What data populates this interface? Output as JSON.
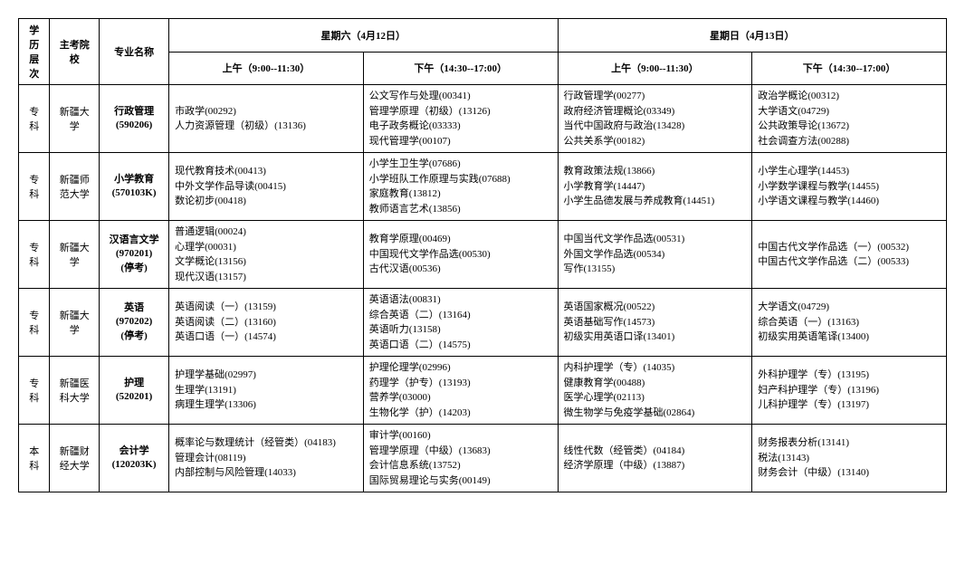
{
  "headers": {
    "level": "学历层次",
    "school": "主考院校",
    "major": "专业名称",
    "day1": "星期六（4月12日）",
    "day2": "星期日（4月13日）",
    "am": "上午（9:00--11:30）",
    "pm": "下午（14:30--17:00）"
  },
  "rows": [
    {
      "level": "专科",
      "school": "新疆大学",
      "major_name": "行政管理",
      "major_code": "(590206)",
      "major_note": "",
      "d1am": [
        "市政学(00292)",
        "人力资源管理（初级）(13136)"
      ],
      "d1pm": [
        "公文写作与处理(00341)",
        "管理学原理（初级）(13126)",
        "电子政务概论(03333)",
        "现代管理学(00107)"
      ],
      "d2am": [
        "行政管理学(00277)",
        "政府经济管理概论(03349)",
        "当代中国政府与政治(13428)",
        "公共关系学(00182)"
      ],
      "d2pm": [
        "政治学概论(00312)",
        "大学语文(04729)",
        "公共政策导论(13672)",
        "社会调查方法(00288)"
      ]
    },
    {
      "level": "专科",
      "school": "新疆师范大学",
      "major_name": "小学教育",
      "major_code": "(570103K)",
      "major_note": "",
      "d1am": [
        "现代教育技术(00413)",
        "中外文学作品导读(00415)",
        "数论初步(00418)"
      ],
      "d1pm": [
        "小学生卫生学(07686)",
        "小学班队工作原理与实践(07688)",
        "家庭教育(13812)",
        "教师语言艺术(13856)"
      ],
      "d2am": [
        "教育政策法规(13866)",
        "小学教育学(14447)",
        "小学生品德发展与养成教育(14451)"
      ],
      "d2pm": [
        "小学生心理学(14453)",
        "小学数学课程与教学(14455)",
        "小学语文课程与教学(14460)"
      ]
    },
    {
      "level": "专科",
      "school": "新疆大学",
      "major_name": "汉语言文学",
      "major_code": "(970201)",
      "major_note": "(停考)",
      "d1am": [
        "普通逻辑(00024)",
        "心理学(00031)",
        "文学概论(13156)",
        "现代汉语(13157)"
      ],
      "d1pm": [
        "教育学原理(00469)",
        "中国现代文学作品选(00530)",
        "古代汉语(00536)"
      ],
      "d2am": [
        "中国当代文学作品选(00531)",
        "外国文学作品选(00534)",
        "写作(13155)"
      ],
      "d2pm": [
        "中国古代文学作品选（一）(00532)",
        "中国古代文学作品选（二）(00533)"
      ]
    },
    {
      "level": "专科",
      "school": "新疆大学",
      "major_name": "英语",
      "major_code": "(970202)",
      "major_note": "(停考)",
      "d1am": [
        "英语阅读（一）(13159)",
        "英语阅读（二）(13160)",
        "英语口语（一）(14574)"
      ],
      "d1pm": [
        "英语语法(00831)",
        "综合英语（二）(13164)",
        "英语听力(13158)",
        "英语口语（二）(14575)"
      ],
      "d2am": [
        "英语国家概况(00522)",
        "英语基础写作(14573)",
        "初级实用英语口译(13401)"
      ],
      "d2pm": [
        "大学语文(04729)",
        "综合英语（一）(13163)",
        "初级实用英语笔译(13400)"
      ]
    },
    {
      "level": "专科",
      "school": "新疆医科大学",
      "major_name": "护理",
      "major_code": "(520201)",
      "major_note": "",
      "d1am": [
        "护理学基础(02997)",
        "生理学(13191)",
        "病理生理学(13306)"
      ],
      "d1pm": [
        "护理伦理学(02996)",
        "药理学（护专）(13193)",
        "营养学(03000)",
        "生物化学（护）(14203)"
      ],
      "d2am": [
        "内科护理学（专）(14035)",
        "健康教育学(00488)",
        "医学心理学(02113)",
        "微生物学与免疫学基础(02864)"
      ],
      "d2pm": [
        "外科护理学（专）(13195)",
        "妇产科护理学（专）(13196)",
        "儿科护理学（专）(13197)"
      ]
    },
    {
      "level": "本科",
      "school": "新疆财经大学",
      "major_name": "会计学",
      "major_code": "(120203K)",
      "major_note": "",
      "d1am": [
        "概率论与数理统计（经管类）(04183)",
        "管理会计(08119)",
        "内部控制与风险管理(14033)"
      ],
      "d1pm": [
        "审计学(00160)",
        "管理学原理（中级）(13683)",
        "会计信息系统(13752)",
        "国际贸易理论与实务(00149)"
      ],
      "d2am": [
        "线性代数（经管类）(04184)",
        "经济学原理（中级）(13887)"
      ],
      "d2pm": [
        "财务报表分析(13141)",
        "税法(13143)",
        "财务会计（中级）(13140)"
      ]
    }
  ]
}
